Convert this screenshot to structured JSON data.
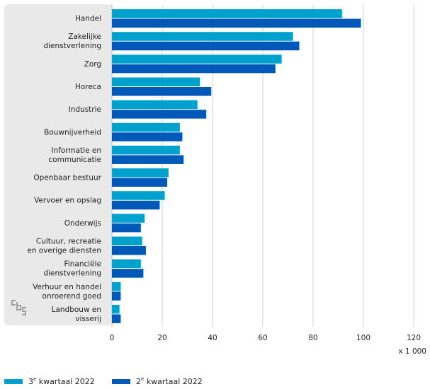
{
  "chart_data": {
    "type": "bar",
    "orientation": "horizontal",
    "title": "",
    "unit_label": "x 1 000",
    "xlim": [
      0,
      120
    ],
    "x_ticks": [
      0,
      20,
      40,
      60,
      80,
      100,
      120
    ],
    "grid": true,
    "categories": [
      [
        "Handel"
      ],
      [
        "Zakelijke",
        "dienstverlening"
      ],
      [
        "Zorg"
      ],
      [
        "Horeca"
      ],
      [
        "Industrie"
      ],
      [
        "Bouwnijverheid"
      ],
      [
        "Informatie en",
        "communicatie"
      ],
      [
        "Openbaar bestuur"
      ],
      [
        "Vervoer en opslag"
      ],
      [
        "Onderwijs"
      ],
      [
        "Cultuur, recreatie",
        "en overige diensten"
      ],
      [
        "Financiële",
        "dienstverlening"
      ],
      [
        "Verhuur en handel",
        "onroerend goed"
      ],
      [
        "Landbouw en",
        "visserij"
      ]
    ],
    "series": [
      {
        "name": "3e kwartaal 2022",
        "label_pre": "3",
        "label_sup": "e",
        "label_post": " kwartaal 2022",
        "color": "#00a1cd",
        "values": [
          91.5,
          72,
          67.5,
          35,
          34,
          27,
          27,
          22.5,
          21,
          13,
          12,
          11.5,
          3.5,
          3
        ]
      },
      {
        "name": "2e kwartaal 2022",
        "label_pre": "2",
        "label_sup": "e",
        "label_post": " kwartaal 2022",
        "color": "#0058b8",
        "values": [
          99,
          74.5,
          65,
          39.5,
          37.5,
          28,
          28.5,
          22,
          19,
          11.5,
          13.5,
          12.5,
          3.5,
          3.5
        ]
      }
    ]
  },
  "colors": {
    "panel": "#e9e9e9",
    "grid": "#d0d0d0",
    "text": "#1f1f1f"
  },
  "logo": {
    "icon": "cbs-logo-icon"
  }
}
